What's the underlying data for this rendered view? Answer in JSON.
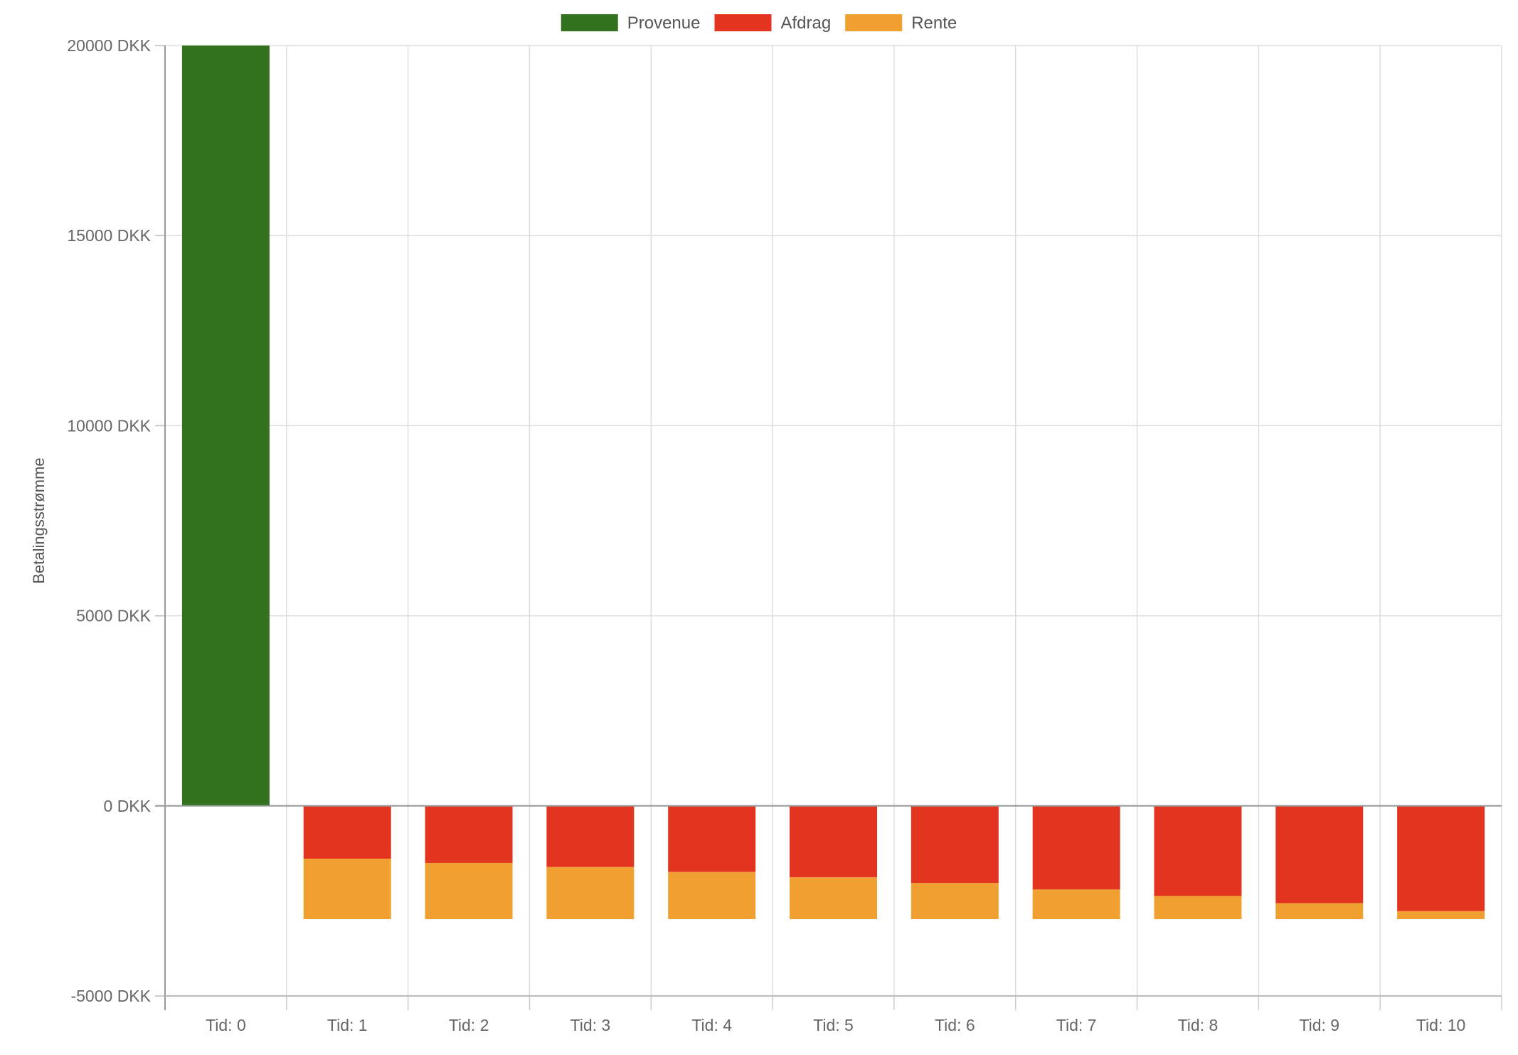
{
  "chart_data": {
    "type": "bar",
    "stacked": true,
    "categories": [
      "Tid: 0",
      "Tid: 1",
      "Tid: 2",
      "Tid: 3",
      "Tid: 4",
      "Tid: 5",
      "Tid: 6",
      "Tid: 7",
      "Tid: 8",
      "Tid: 9",
      "Tid: 10"
    ],
    "series": [
      {
        "name": "Provenue",
        "color": "#33721e",
        "values": [
          20000,
          0,
          0,
          0,
          0,
          0,
          0,
          0,
          0,
          0,
          0
        ]
      },
      {
        "name": "Afdrag",
        "color": "#e3341f",
        "values": [
          0,
          -1390,
          -1500,
          -1610,
          -1740,
          -1880,
          -2030,
          -2200,
          -2370,
          -2560,
          -2770
        ]
      },
      {
        "name": "Rente",
        "color": "#efa030",
        "values": [
          0,
          -1590,
          -1480,
          -1370,
          -1240,
          -1100,
          -950,
          -780,
          -610,
          -420,
          -210
        ]
      }
    ],
    "ylabel": "Betalingsstrømme",
    "ylim": [
      -5000,
      20000
    ],
    "y_ticks": [
      20000,
      15000,
      10000,
      5000,
      0,
      -5000
    ],
    "y_tick_labels": [
      "20000 DKK",
      "15000 DKK",
      "10000 DKK",
      "5000 DKK",
      "0 DKK",
      "-5000 DKK"
    ],
    "grid": true,
    "legend_position": "top-center"
  }
}
